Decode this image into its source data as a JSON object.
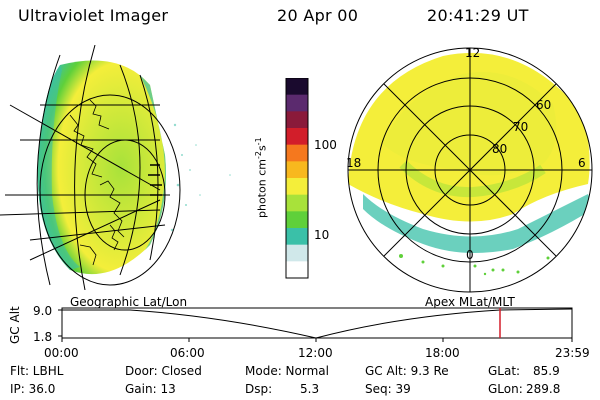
{
  "header": {
    "title": "Ultraviolet Imager",
    "date": "20 Apr 00",
    "time": "20:41:29 UT"
  },
  "colorbar": {
    "label": "photon cm",
    "label_sup1": "-2",
    "label_mid": "s",
    "label_sup2": "-1",
    "tick_100": "100",
    "tick_10": "10",
    "colors": [
      "#1a0a2e",
      "#5b2a6e",
      "#8a1a3a",
      "#d21e2a",
      "#f5781e",
      "#f8b81e",
      "#f4ee3a",
      "#a8e23a",
      "#5fd03a",
      "#3ac0a8",
      "#d0e8ea",
      "#ffffff"
    ]
  },
  "polar": {
    "mlt_12": "12",
    "mlt_18": "18",
    "mlt_6": "6",
    "mlt_0": "0",
    "lat_60": "60",
    "lat_70": "70",
    "lat_80": "80"
  },
  "plot": {
    "left_title": "Geographic Lat/Lon",
    "right_title": "Apex MLat/MLT",
    "yaxis": "GC Alt",
    "ytick_top": "9.0",
    "ytick_bottom": "1.8",
    "xticks": [
      "00:00",
      "06:00",
      "12:00",
      "18:00",
      "23:59"
    ]
  },
  "status": {
    "flt": "Flt: LBHL",
    "ip": "IP: 36.0",
    "door": "Door: Closed",
    "gain": "Gain: 13",
    "mode": "Mode: Normal",
    "dsp_label": "Dsp:",
    "dsp_value": "5.3",
    "gcalt": "GC Alt: 9.3 Re",
    "seq": "Seq: 39",
    "glat_label": "GLat:",
    "glat_value": "85.9",
    "glon_label": "GLon:",
    "glon_value": "289.8"
  }
}
